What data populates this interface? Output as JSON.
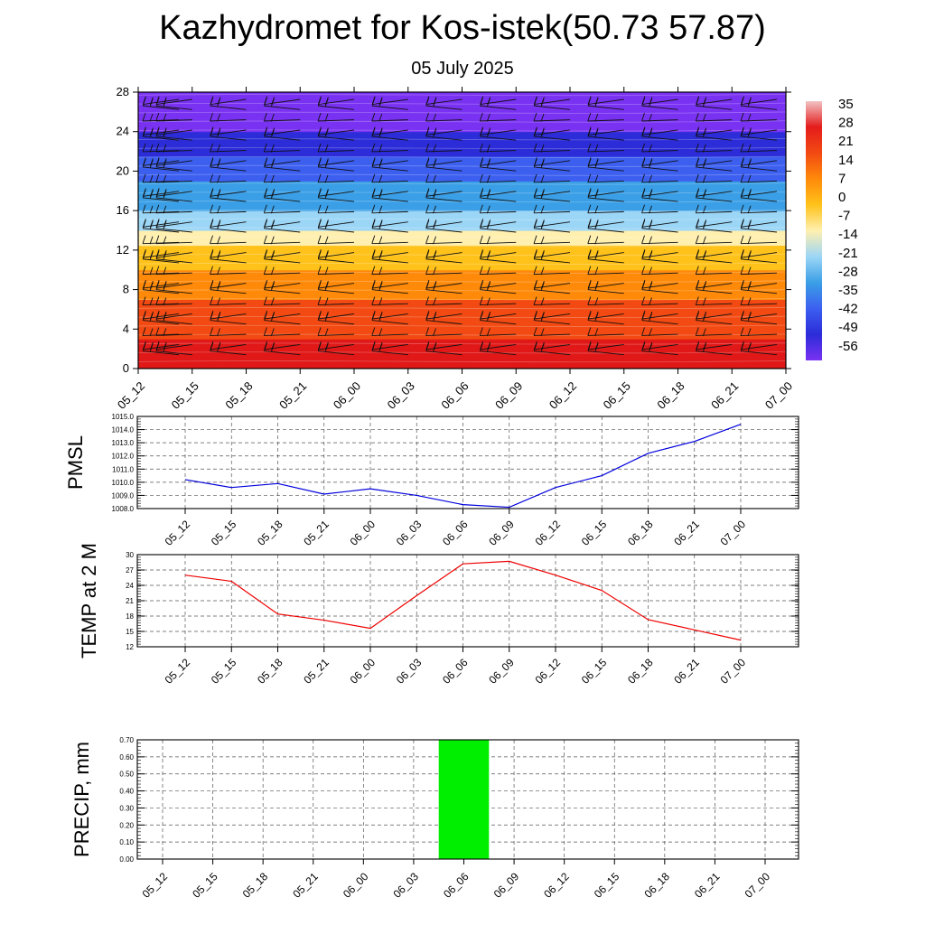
{
  "header": {
    "title": "Kazhydromet for Kos-istek(50.73 57.87)",
    "subtitle": "05 July 2025"
  },
  "chart_data": [
    {
      "type": "heatmap",
      "title": "",
      "xlabel": "",
      "ylabel": "",
      "x_ticks": [
        "05_12",
        "05_15",
        "05_18",
        "05_21",
        "06_00",
        "06_03",
        "06_06",
        "06_09",
        "06_12",
        "06_15",
        "06_18",
        "06_21",
        "07_00"
      ],
      "y_ticks": [
        "0",
        "4",
        "8",
        "12",
        "16",
        "20",
        "24",
        "28"
      ],
      "ylim": [
        0,
        28
      ],
      "colorbar_labels": [
        "35",
        "28",
        "21",
        "14",
        "7",
        "0",
        "-7",
        "-14",
        "-21",
        "-28",
        "-35",
        "-42",
        "-49",
        "-56"
      ],
      "description_note": "",
      "bands": [
        {
          "y": [
            0,
            3
          ],
          "color": "#e01818"
        },
        {
          "y": [
            3,
            7
          ],
          "color": "#f24a12"
        },
        {
          "y": [
            7,
            10
          ],
          "color": "#ff8a0a"
        },
        {
          "y": [
            10,
            12.5
          ],
          "color": "#ffc21a"
        },
        {
          "y": [
            12.5,
            14
          ],
          "color": "#fff0b0"
        },
        {
          "y": [
            14,
            16
          ],
          "color": "#9cd6f6"
        },
        {
          "y": [
            16,
            19
          ],
          "color": "#3a9fe6"
        },
        {
          "y": [
            19,
            21.5
          ],
          "color": "#3c5ff0"
        },
        {
          "y": [
            21.5,
            24
          ],
          "color": "#2c2cd8"
        },
        {
          "y": [
            24,
            28
          ],
          "color": "#7a32f2"
        }
      ],
      "wind_barbs": true,
      "grid": false
    },
    {
      "type": "line",
      "ylabel": "PMSL",
      "categories": [
        "05_12",
        "05_15",
        "05_18",
        "05_21",
        "06_00",
        "06_03",
        "06_06",
        "06_09",
        "06_12",
        "06_15",
        "06_18",
        "06_21",
        "07_00"
      ],
      "series": [
        {
          "color": "#0000dd",
          "values": [
            1010.2,
            1009.6,
            1009.9,
            1009.1,
            1009.5,
            1009.0,
            1008.3,
            1008.1,
            1009.6,
            1010.5,
            1012.2,
            1013.1,
            1014.4
          ]
        }
      ],
      "ylim": [
        1008.0,
        1015.0
      ],
      "y_ticks": [
        "1008.0",
        "1009.0",
        "1010.0",
        "1011.0",
        "1012.0",
        "1013.0",
        "1014.0",
        "1015.0"
      ],
      "grid": true
    },
    {
      "type": "line",
      "ylabel": "TEMP at 2 M",
      "categories": [
        "05_12",
        "05_15",
        "05_18",
        "05_21",
        "06_00",
        "06_03",
        "06_06",
        "06_09",
        "06_12",
        "06_15",
        "06_18",
        "06_21",
        "07_00"
      ],
      "series": [
        {
          "color": "#ee0000",
          "values": [
            26.0,
            24.8,
            18.4,
            17.2,
            15.6,
            22.0,
            28.2,
            28.7,
            26.0,
            23.0,
            17.3,
            15.3,
            13.3
          ]
        }
      ],
      "ylim": [
        12,
        30
      ],
      "y_ticks": [
        "12",
        "15",
        "18",
        "21",
        "24",
        "27",
        "30"
      ],
      "grid": true
    },
    {
      "type": "bar",
      "ylabel": "PRECIP, mm",
      "categories": [
        "05_12",
        "05_15",
        "05_18",
        "05_21",
        "06_00",
        "06_03",
        "06_06",
        "06_09",
        "06_12",
        "06_15",
        "06_18",
        "06_21",
        "07_00"
      ],
      "values": [
        0,
        0,
        0,
        0,
        0,
        0,
        0.7,
        0,
        0,
        0,
        0,
        0,
        0
      ],
      "bar_color": "#00ee00",
      "ylim": [
        0,
        0.7
      ],
      "y_ticks": [
        "0.00",
        "0.10",
        "0.20",
        "0.30",
        "0.40",
        "0.50",
        "0.60",
        "0.70"
      ],
      "grid": true
    }
  ]
}
